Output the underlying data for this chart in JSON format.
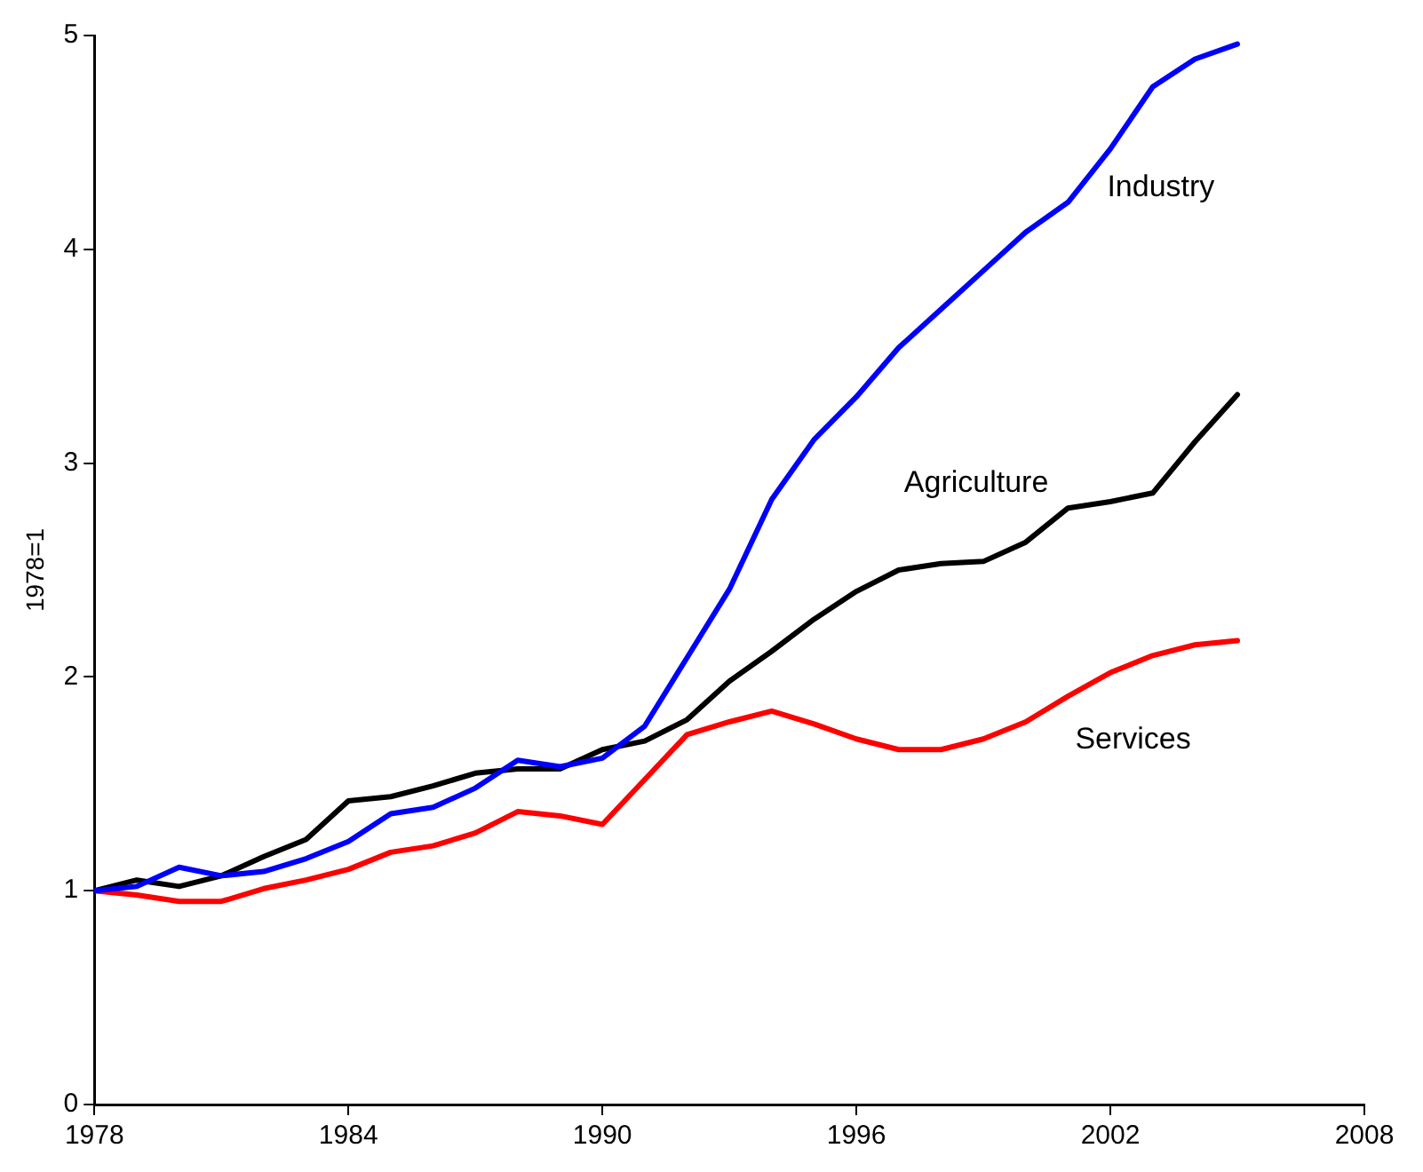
{
  "chart_data": {
    "type": "line",
    "ylabel": "1978=1",
    "x": [
      1978,
      1979,
      1980,
      1981,
      1982,
      1983,
      1984,
      1985,
      1986,
      1987,
      1988,
      1989,
      1990,
      1991,
      1992,
      1993,
      1994,
      1995,
      1996,
      1997,
      1998,
      1999,
      2000,
      2001,
      2002,
      2003,
      2004,
      2005
    ],
    "series": [
      {
        "name": "Industry",
        "color": "#0000ff",
        "values": [
          1.0,
          1.02,
          1.11,
          1.07,
          1.09,
          1.15,
          1.23,
          1.36,
          1.39,
          1.48,
          1.61,
          1.58,
          1.62,
          1.77,
          2.09,
          2.41,
          2.83,
          3.11,
          3.31,
          3.54,
          3.72,
          3.9,
          4.08,
          4.22,
          4.47,
          4.76,
          4.89,
          4.96
        ]
      },
      {
        "name": "Agriculture",
        "color": "#000000",
        "values": [
          1.0,
          1.05,
          1.02,
          1.07,
          1.16,
          1.24,
          1.42,
          1.44,
          1.49,
          1.55,
          1.57,
          1.57,
          1.66,
          1.7,
          1.8,
          1.98,
          2.12,
          2.27,
          2.4,
          2.5,
          2.53,
          2.54,
          2.63,
          2.79,
          2.82,
          2.86,
          3.1,
          3.32
        ]
      },
      {
        "name": "Services",
        "color": "#ff0000",
        "values": [
          1.0,
          0.98,
          0.95,
          0.95,
          1.01,
          1.05,
          1.1,
          1.18,
          1.21,
          1.27,
          1.37,
          1.35,
          1.31,
          1.52,
          1.73,
          1.79,
          1.84,
          1.78,
          1.71,
          1.66,
          1.66,
          1.71,
          1.79,
          1.91,
          2.02,
          2.1,
          2.15,
          2.17
        ]
      }
    ],
    "xlim": [
      1978,
      2008
    ],
    "xticks": [
      1978,
      1984,
      1990,
      1996,
      2002,
      2008
    ],
    "ylim": [
      0,
      5
    ],
    "yticks": [
      0,
      1,
      2,
      3,
      4,
      5
    ],
    "grid": false,
    "legend": false,
    "marker": "none",
    "line_style": "solid"
  }
}
